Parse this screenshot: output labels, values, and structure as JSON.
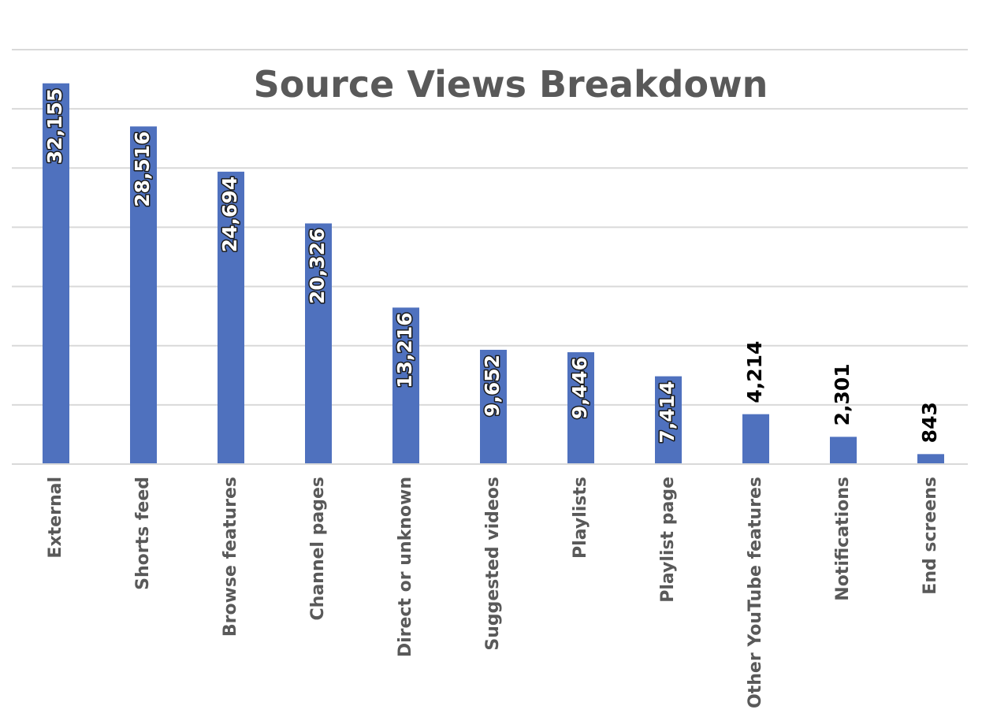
{
  "chart_data": {
    "type": "bar",
    "orientation": "vertical",
    "title": "Source Views Breakdown",
    "categories": [
      "External",
      "Shorts feed",
      "Browse features",
      "Channel pages",
      "Direct or unknown",
      "Suggested videos",
      "Playlists",
      "Playlist page",
      "Other YouTube features",
      "Notifications",
      "End screens"
    ],
    "values": [
      32155,
      28516,
      24694,
      20326,
      13216,
      9652,
      9446,
      7414,
      4214,
      2301,
      843
    ],
    "value_labels": [
      "32,155",
      "28,516",
      "24,694",
      "20,326",
      "13,216",
      "9,652",
      "9,446",
      "7,414",
      "4,214",
      "2,301",
      "843"
    ],
    "xlabel": "",
    "ylabel": "",
    "ylim": [
      0,
      35000
    ],
    "y_tick_step": 5000,
    "y_tick_labels_shown": false,
    "grid": true,
    "legend": "none",
    "colors": {
      "bar": "#4f71be",
      "grid": "#d9d9d9",
      "title": "#595959",
      "tick_label": "#595959"
    }
  }
}
